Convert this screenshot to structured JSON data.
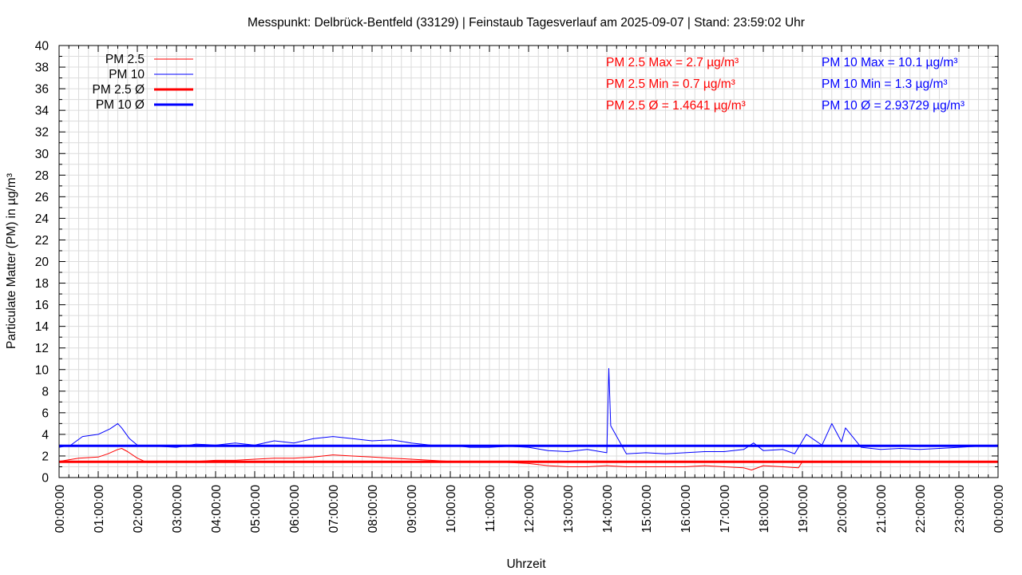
{
  "chart_data": {
    "type": "line",
    "title": "Messpunkt: Delbrück-Bentfeld (33129) | Feinstaub Tagesverlauf am 2025-09-07 | Stand: 23:59:02 Uhr",
    "xlabel": "Uhrzeit",
    "ylabel": "Particulate Matter (PM) in µg/m³",
    "ylim": [
      0,
      40
    ],
    "xlim_hours": [
      0,
      24
    ],
    "grid": true,
    "legend_position": "top-left",
    "yticks": [
      "0",
      "2",
      "4",
      "6",
      "8",
      "10",
      "12",
      "14",
      "16",
      "18",
      "20",
      "22",
      "24",
      "26",
      "28",
      "30",
      "32",
      "34",
      "36",
      "38",
      "40"
    ],
    "xticks": [
      "00:00:00",
      "01:00:00",
      "02:00:00",
      "03:00:00",
      "04:00:00",
      "05:00:00",
      "06:00:00",
      "07:00:00",
      "08:00:00",
      "09:00:00",
      "10:00:00",
      "11:00:00",
      "12:00:00",
      "13:00:00",
      "14:00:00",
      "15:00:00",
      "16:00:00",
      "17:00:00",
      "18:00:00",
      "19:00:00",
      "20:00:00",
      "21:00:00",
      "22:00:00",
      "23:00:00",
      "00:00:00"
    ],
    "legend": [
      {
        "label": "PM 2.5",
        "color": "#ff0000",
        "style": "thin"
      },
      {
        "label": "PM 10",
        "color": "#0000ff",
        "style": "thin"
      },
      {
        "label": "PM 2.5 Ø",
        "color": "#ff0000",
        "style": "thick"
      },
      {
        "label": "PM 10 Ø",
        "color": "#0000ff",
        "style": "thick"
      }
    ],
    "stats": {
      "pm25": [
        {
          "label": "PM 2.5 Max = 2.7 µg/m³"
        },
        {
          "label": "PM 2.5 Min = 0.7 µg/m³"
        },
        {
          "label": "PM 2.5 Ø = 1.4641 µg/m³"
        }
      ],
      "pm10": [
        {
          "label": "PM 10 Max = 10.1 µg/m³"
        },
        {
          "label": "PM 10 Min = 1.3 µg/m³"
        },
        {
          "label": "PM 10 Ø = 2.93729 µg/m³"
        }
      ]
    },
    "series": [
      {
        "name": "PM 2.5",
        "color": "#ff0000",
        "x_hours": [
          0,
          0.5,
          1,
          1.25,
          1.5,
          1.6,
          1.75,
          2,
          2.25,
          2.5,
          3,
          3.5,
          4,
          4.5,
          5,
          5.5,
          6,
          6.5,
          7,
          7.5,
          8,
          8.5,
          9,
          9.5,
          10,
          10.5,
          11,
          11.5,
          12,
          12.5,
          13,
          13.5,
          14,
          14.5,
          15,
          15.5,
          16,
          16.5,
          17,
          17.5,
          17.7,
          18,
          18.5,
          18.9,
          19,
          19.5,
          20,
          20.5,
          21,
          21.5,
          22,
          22.5,
          23,
          23.5,
          24
        ],
        "values": [
          1.5,
          1.8,
          1.9,
          2.2,
          2.6,
          2.7,
          2.4,
          1.8,
          1.4,
          1.4,
          1.5,
          1.5,
          1.6,
          1.6,
          1.7,
          1.8,
          1.8,
          1.9,
          2.1,
          2.0,
          1.9,
          1.8,
          1.7,
          1.6,
          1.5,
          1.5,
          1.5,
          1.4,
          1.3,
          1.1,
          1.0,
          1.0,
          1.1,
          1.0,
          1.0,
          1.0,
          1.0,
          1.1,
          1.0,
          0.9,
          0.7,
          1.1,
          1.0,
          0.9,
          1.5,
          1.5,
          1.4,
          1.5,
          1.5,
          1.5,
          1.5,
          1.5,
          1.5,
          1.5,
          1.5
        ]
      },
      {
        "name": "PM 10",
        "color": "#0000ff",
        "x_hours": [
          0,
          0.3,
          0.6,
          1,
          1.3,
          1.5,
          1.6,
          1.8,
          2,
          2.5,
          3,
          3.5,
          4,
          4.5,
          5,
          5.5,
          6,
          6.5,
          7,
          7.5,
          8,
          8.5,
          9,
          9.5,
          10,
          10.5,
          11,
          11.5,
          12,
          12.5,
          13,
          13.5,
          14,
          14.05,
          14.1,
          14.5,
          15,
          15.5,
          16,
          16.5,
          17,
          17.5,
          17.75,
          18,
          18.5,
          18.8,
          19,
          19.1,
          19.5,
          19.75,
          20,
          20.1,
          20.5,
          21,
          21.5,
          22,
          22.5,
          23,
          23.5,
          24
        ],
        "values": [
          2.8,
          3.0,
          3.8,
          4.0,
          4.5,
          5.0,
          4.6,
          3.6,
          3.0,
          2.9,
          2.8,
          3.1,
          3.0,
          3.2,
          3.0,
          3.4,
          3.2,
          3.6,
          3.8,
          3.6,
          3.4,
          3.5,
          3.2,
          3.0,
          3.0,
          2.8,
          2.8,
          2.9,
          2.8,
          2.5,
          2.4,
          2.6,
          2.3,
          10.1,
          4.8,
          2.2,
          2.3,
          2.2,
          2.3,
          2.4,
          2.4,
          2.6,
          3.2,
          2.5,
          2.6,
          2.2,
          3.4,
          4.0,
          3.0,
          5.0,
          3.3,
          4.6,
          2.8,
          2.6,
          2.7,
          2.6,
          2.7,
          2.8,
          2.9,
          3.0
        ]
      },
      {
        "name": "PM 2.5 Ø",
        "color": "#ff0000",
        "x_hours": [
          0,
          24
        ],
        "values": [
          1.4641,
          1.4641
        ]
      },
      {
        "name": "PM 10 Ø",
        "color": "#0000ff",
        "x_hours": [
          0,
          24
        ],
        "values": [
          2.93729,
          2.93729
        ]
      }
    ]
  }
}
